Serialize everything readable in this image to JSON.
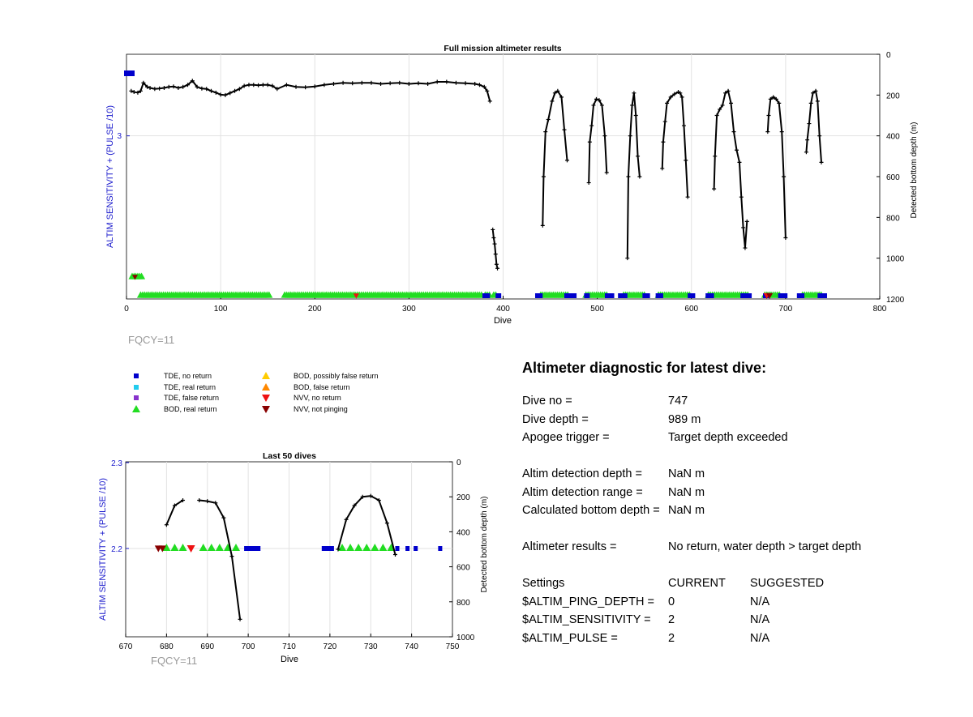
{
  "top": {
    "title": "Full mission altimeter results",
    "xlabel": "Dive",
    "ylabel_left": "ALTIM SENSITIVITY + (PULSE /10)",
    "ylabel_right": "Detected bottom depth (m)",
    "xticks": [
      "0",
      "100",
      "200",
      "300",
      "400",
      "500",
      "600",
      "700",
      "800"
    ],
    "yticks_left": [
      "3"
    ],
    "yticks_right": [
      "0",
      "200",
      "400",
      "600",
      "800",
      "1000",
      "1200"
    ],
    "fqcy": "FQCY=11"
  },
  "bottom": {
    "title": "Last 50 dives",
    "xlabel": "Dive",
    "ylabel_left": "ALTIM SENSITIVITY + (PULSE /10)",
    "ylabel_right": "Detected bottom depth (m)",
    "xticks": [
      "670",
      "680",
      "690",
      "700",
      "710",
      "720",
      "730",
      "740",
      "750"
    ],
    "yticks_left": [
      "2.3",
      "2.2"
    ],
    "yticks_right": [
      "0",
      "200",
      "400",
      "600",
      "800",
      "1000"
    ],
    "fqcy": "FQCY=11"
  },
  "legend": [
    {
      "label": "TDE, no return",
      "shape": "square",
      "color": "#0000cc"
    },
    {
      "label": "TDE, real return",
      "shape": "square",
      "color": "#22ccee"
    },
    {
      "label": "TDE, false return",
      "shape": "square",
      "color": "#8833cc"
    },
    {
      "label": "BOD, real return",
      "shape": "triangle-up",
      "color": "#22dd22"
    },
    {
      "label": "BOD, possibly false return",
      "shape": "triangle-up",
      "color": "#ffcc00"
    },
    {
      "label": "BOD, false return",
      "shape": "triangle-up",
      "color": "#ff8800"
    },
    {
      "label": "NVV, no return",
      "shape": "triangle-down",
      "color": "#ee1111"
    },
    {
      "label": "NVV, not pinging",
      "shape": "triangle-down",
      "color": "#880000"
    }
  ],
  "diagnostic": {
    "title": "Altimeter diagnostic for latest dive:",
    "dive_no_label": "Dive no =",
    "dive_no": "747",
    "dive_depth_label": "Dive depth =",
    "dive_depth": "989 m",
    "apogee_label": "Apogee trigger =",
    "apogee": "Target depth exceeded",
    "det_depth_label": "Altim detection depth =",
    "det_depth": "NaN m",
    "det_range_label": "Altim detection range =",
    "det_range": "NaN m",
    "calc_depth_label": "Calculated bottom depth =",
    "calc_depth": "NaN m",
    "results_label": "Altimeter results =",
    "results": "No return, water depth > target depth",
    "settings_label": "Settings",
    "current_label": "CURRENT",
    "suggested_label": "SUGGESTED",
    "ping_label": "$ALTIM_PING_DEPTH =",
    "ping_cur": "0",
    "ping_sug": "N/A",
    "sens_label": "$ALTIM_SENSITIVITY =",
    "sens_cur": "2",
    "sens_sug": "N/A",
    "pulse_label": "$ALTIM_PULSE =",
    "pulse_cur": "2",
    "pulse_sug": "N/A"
  },
  "chart_data": [
    {
      "type": "line",
      "title": "Full mission altimeter results",
      "xlabel": "Dive",
      "ylabel": "Detected bottom depth (m)",
      "xlim": [
        0,
        800
      ],
      "ylim_right": [
        1200,
        0
      ],
      "series": [
        {
          "name": "Detected bottom depth",
          "x": [
            5,
            8,
            12,
            15,
            18,
            22,
            25,
            30,
            35,
            40,
            45,
            50,
            55,
            60,
            65,
            70,
            75,
            80,
            85,
            90,
            95,
            100,
            105,
            110,
            115,
            120,
            125,
            130,
            135,
            140,
            145,
            150,
            155,
            160,
            170,
            180,
            190,
            200,
            210,
            220,
            230,
            240,
            250,
            260,
            270,
            280,
            290,
            300,
            310,
            320,
            330,
            340,
            350,
            360,
            370,
            375,
            380,
            383,
            386
          ],
          "y": [
            180,
            185,
            188,
            180,
            140,
            160,
            165,
            170,
            168,
            165,
            160,
            158,
            165,
            160,
            150,
            130,
            160,
            168,
            170,
            180,
            188,
            198,
            200,
            190,
            180,
            170,
            155,
            150,
            150,
            152,
            150,
            150,
            155,
            170,
            150,
            160,
            162,
            158,
            150,
            145,
            140,
            142,
            140,
            140,
            145,
            142,
            140,
            145,
            142,
            145,
            135,
            135,
            140,
            142,
            145,
            150,
            160,
            180,
            230
          ],
          "gap_after": true
        },
        {
          "name": "Detected bottom depth cont.",
          "x": [
            389,
            390,
            391,
            392,
            393,
            394
          ],
          "y": [
            860,
            900,
            930,
            980,
            1030,
            1050
          ]
        },
        {
          "name": "dive profiles",
          "segments": [
            {
              "x": [
                442,
                443,
                445,
                448,
                452,
                455,
                458,
                462,
                465,
                468
              ],
              "y": [
                840,
                600,
                380,
                320,
                230,
                190,
                180,
                210,
                370,
                520
              ]
            },
            {
              "x": [
                491,
                492,
                494,
                496,
                499,
                502,
                505,
                508,
                510
              ],
              "y": [
                630,
                430,
                350,
                250,
                220,
                225,
                250,
                400,
                580
              ]
            },
            {
              "x": [
                532,
                533,
                535,
                537,
                539,
                541,
                543,
                545
              ],
              "y": [
                1000,
                600,
                400,
                250,
                190,
                300,
                500,
                600
              ]
            },
            {
              "x": [
                569,
                570,
                572,
                574,
                578,
                582,
                586,
                588,
                590,
                592,
                594,
                596
              ],
              "y": [
                560,
                430,
                330,
                240,
                210,
                195,
                185,
                190,
                210,
                350,
                520,
                700
              ]
            },
            {
              "x": [
                624,
                625,
                627,
                630,
                633,
                636,
                639,
                642,
                645,
                648,
                651,
                653,
                655,
                657,
                659
              ],
              "y": [
                660,
                500,
                300,
                270,
                250,
                190,
                180,
                240,
                380,
                470,
                530,
                700,
                850,
                950,
                820
              ]
            },
            {
              "x": [
                681,
                682,
                684,
                687,
                690,
                693,
                696,
                698,
                700
              ],
              "y": [
                380,
                300,
                220,
                210,
                220,
                240,
                380,
                600,
                900
              ]
            },
            {
              "x": [
                722,
                723,
                725,
                727,
                729,
                732,
                734,
                736,
                738
              ],
              "y": [
                480,
                420,
                340,
                240,
                190,
                180,
                230,
                400,
                530
              ]
            }
          ]
        }
      ]
    },
    {
      "type": "line",
      "title": "Last 50 dives",
      "xlabel": "Dive",
      "ylabel": "Detected bottom depth (m)",
      "xlim": [
        670,
        750
      ],
      "ylim_right": [
        1000,
        0
      ],
      "series": [
        {
          "name": "seg1",
          "x": [
            680,
            682,
            684
          ],
          "y": [
            360,
            250,
            220
          ]
        },
        {
          "name": "seg2",
          "x": [
            688,
            690,
            692,
            694,
            696,
            698
          ],
          "y": [
            220,
            225,
            235,
            320,
            540,
            900
          ]
        },
        {
          "name": "seg3",
          "x": [
            722,
            724,
            726,
            728,
            730,
            732,
            734,
            736
          ],
          "y": [
            500,
            330,
            250,
            200,
            195,
            220,
            350,
            530
          ]
        }
      ]
    }
  ]
}
